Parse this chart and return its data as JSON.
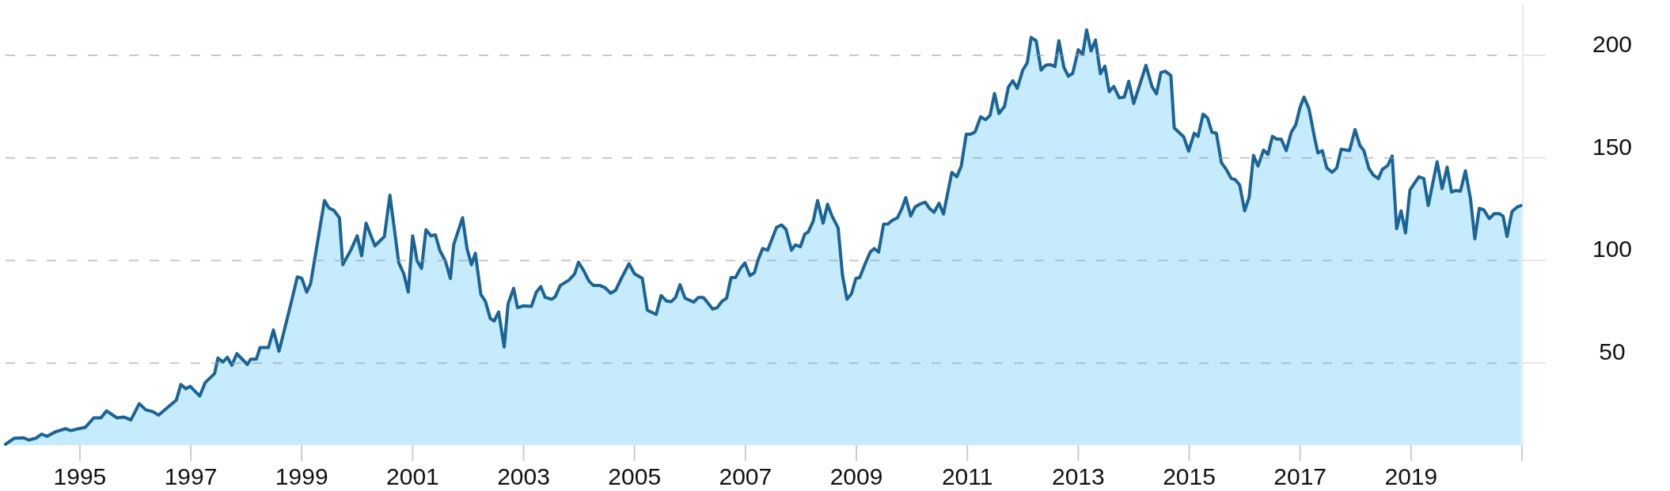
{
  "chart_data": {
    "type": "area",
    "grid": "y",
    "xlim": [
      1993.66,
      2021.0
    ],
    "ylim": [
      10,
      225
    ],
    "xticks": [
      1995,
      1997,
      1999,
      2001,
      2003,
      2005,
      2007,
      2009,
      2011,
      2013,
      2015,
      2017,
      2019,
      {
        "value": 2021,
        "label": null
      }
    ],
    "yticks": [
      50,
      100,
      150,
      200
    ],
    "series": [
      {
        "color": "#1b6497",
        "x": [
          1993.66,
          1993.82,
          1993.98,
          1994.08,
          1994.21,
          1994.31,
          1994.41,
          1994.57,
          1994.74,
          1994.84,
          1994.97,
          1995.1,
          1995.25,
          1995.38,
          1995.48,
          1995.67,
          1995.79,
          1995.92,
          1996.07,
          1996.19,
          1996.32,
          1996.42,
          1996.57,
          1996.74,
          1996.82,
          1996.91,
          1996.99,
          1997.16,
          1997.26,
          1997.43,
          1997.49,
          1997.58,
          1997.66,
          1997.74,
          1997.83,
          1998.02,
          1998.08,
          1998.18,
          1998.25,
          1998.4,
          1998.49,
          1998.59,
          1998.67,
          1998.8,
          1998.92,
          1999.0,
          1999.09,
          1999.16,
          1999.26,
          1999.41,
          1999.49,
          1999.58,
          1999.68,
          1999.74,
          1999.89,
          2000.0,
          2000.08,
          2000.16,
          2000.32,
          2000.49,
          2000.59,
          2000.75,
          2000.84,
          2000.92,
          2001.0,
          2001.08,
          2001.16,
          2001.24,
          2001.33,
          2001.41,
          2001.49,
          2001.59,
          2001.68,
          2001.74,
          2001.9,
          2001.98,
          2002.06,
          2002.13,
          2002.23,
          2002.31,
          2002.4,
          2002.47,
          2002.55,
          2002.65,
          2002.72,
          2002.82,
          2002.89,
          2003.0,
          2003.14,
          2003.23,
          2003.31,
          2003.39,
          2003.51,
          2003.57,
          2003.66,
          2003.82,
          2003.92,
          2003.99,
          2004.08,
          2004.18,
          2004.26,
          2004.38,
          2004.47,
          2004.57,
          2004.66,
          2004.77,
          2004.9,
          2005.0,
          2005.14,
          2005.23,
          2005.39,
          2005.48,
          2005.58,
          2005.66,
          2005.74,
          2005.82,
          2005.91,
          2006.07,
          2006.15,
          2006.24,
          2006.31,
          2006.41,
          2006.49,
          2006.58,
          2006.66,
          2006.74,
          2006.82,
          2006.91,
          2006.99,
          2007.08,
          2007.16,
          2007.23,
          2007.31,
          2007.4,
          2007.56,
          2007.65,
          2007.73,
          2007.83,
          2007.9,
          2007.99,
          2008.07,
          2008.13,
          2008.22,
          2008.3,
          2008.4,
          2008.48,
          2008.56,
          2008.67,
          2008.75,
          2008.83,
          2008.91,
          2008.99,
          2009.06,
          2009.15,
          2009.25,
          2009.32,
          2009.4,
          2009.49,
          2009.57,
          2009.65,
          2009.74,
          2009.82,
          2009.89,
          2009.98,
          2010.06,
          2010.14,
          2010.24,
          2010.32,
          2010.4,
          2010.49,
          2010.57,
          2010.72,
          2010.81,
          2010.89,
          2010.98,
          2011.06,
          2011.14,
          2011.24,
          2011.33,
          2011.41,
          2011.49,
          2011.57,
          2011.67,
          2011.74,
          2011.82,
          2011.9,
          2012.0,
          2012.08,
          2012.15,
          2012.24,
          2012.33,
          2012.41,
          2012.5,
          2012.58,
          2012.65,
          2012.74,
          2012.82,
          2012.9,
          2013.0,
          2013.08,
          2013.15,
          2013.23,
          2013.31,
          2013.4,
          2013.48,
          2013.56,
          2013.64,
          2013.74,
          2013.83,
          2013.91,
          2014.0,
          2014.12,
          2014.22,
          2014.33,
          2014.41,
          2014.49,
          2014.57,
          2014.67,
          2014.73,
          2014.9,
          2014.99,
          2015.09,
          2015.16,
          2015.25,
          2015.33,
          2015.41,
          2015.49,
          2015.58,
          2015.67,
          2015.76,
          2015.83,
          2015.91,
          2016.0,
          2016.08,
          2016.16,
          2016.24,
          2016.34,
          2016.42,
          2016.5,
          2016.58,
          2016.66,
          2016.75,
          2016.84,
          2016.92,
          2017.0,
          2017.07,
          2017.16,
          2017.26,
          2017.32,
          2017.4,
          2017.48,
          2017.58,
          2017.66,
          2017.74,
          2017.89,
          2017.99,
          2018.08,
          2018.15,
          2018.24,
          2018.32,
          2018.41,
          2018.48,
          2018.58,
          2018.66,
          2018.74,
          2018.82,
          2018.9,
          2018.98,
          2019.14,
          2019.23,
          2019.31,
          2019.47,
          2019.56,
          2019.65,
          2019.73,
          2019.81,
          2019.89,
          2019.98,
          2020.07,
          2020.15,
          2020.23,
          2020.31,
          2020.41,
          2020.5,
          2020.59,
          2020.66,
          2020.73,
          2020.82,
          2020.91,
          2020.99
        ],
        "values": [
          10.4,
          13.4,
          13.6,
          12.5,
          13.4,
          15.4,
          14.3,
          16.6,
          18.0,
          17.1,
          18.0,
          18.7,
          23.3,
          23.3,
          26.7,
          23.3,
          23.7,
          22.3,
          30.2,
          27.2,
          26.3,
          24.6,
          28.1,
          32.0,
          39.6,
          37.5,
          38.7,
          33.9,
          40.5,
          44.9,
          52.5,
          50.5,
          52.8,
          48.9,
          54.6,
          49.3,
          51.9,
          51.9,
          57.6,
          57.6,
          66.1,
          55.8,
          64.3,
          78.4,
          92.0,
          91.3,
          84.6,
          88.7,
          104.9,
          129.2,
          125.6,
          124.4,
          120.8,
          97.9,
          105.3,
          112.0,
          102.3,
          118.2,
          107.1,
          111.7,
          131.8,
          98.8,
          93.5,
          84.6,
          112.0,
          99.8,
          96.1,
          115.0,
          112.0,
          112.5,
          104.9,
          99.8,
          91.2,
          107.7,
          120.8,
          105.8,
          97.9,
          103.5,
          83.4,
          80.2,
          71.7,
          70.5,
          74.9,
          57.8,
          78.8,
          86.4,
          77.0,
          77.9,
          77.6,
          84.6,
          87.3,
          82.0,
          81.1,
          82.3,
          87.8,
          90.5,
          93.5,
          99.1,
          95.2,
          89.9,
          87.8,
          87.8,
          86.7,
          84.1,
          85.5,
          91.7,
          98.4,
          93.5,
          91.3,
          75.8,
          73.7,
          82.9,
          80.2,
          79.9,
          82.0,
          88.2,
          81.6,
          79.7,
          82.0,
          82.0,
          79.7,
          76.3,
          77.0,
          80.2,
          81.6,
          91.7,
          91.7,
          96.1,
          98.8,
          92.6,
          94.0,
          100.5,
          105.8,
          105.0,
          116.1,
          117.3,
          115.2,
          105.0,
          107.6,
          106.7,
          112.9,
          113.8,
          119.1,
          129.2,
          118.2,
          127.4,
          121.7,
          115.9,
          92.6,
          81.1,
          83.7,
          91.2,
          91.7,
          97.9,
          104.1,
          105.8,
          104.1,
          117.7,
          117.8,
          119.6,
          120.8,
          125.3,
          130.6,
          121.7,
          126.1,
          127.4,
          128.4,
          125.3,
          123.5,
          127.9,
          122.6,
          142.9,
          140.8,
          145.9,
          161.5,
          161.5,
          162.7,
          170.0,
          168.6,
          170.7,
          181.4,
          171.6,
          175.1,
          184.5,
          187.6,
          183.9,
          192.8,
          196.3,
          208.7,
          207.1,
          192.8,
          195.1,
          195.4,
          194.5,
          207.1,
          194.2,
          189.8,
          191.2,
          202.7,
          200.4,
          212.4,
          202.1,
          207.4,
          191.0,
          194.7,
          182.2,
          184.8,
          179.2,
          179.6,
          187.3,
          176.5,
          186.6,
          195.1,
          184.7,
          181.2,
          191.6,
          192.2,
          190.1,
          164.6,
          160.3,
          153.3,
          162.0,
          160.5,
          171.3,
          169.5,
          162.5,
          162.0,
          147.7,
          144.3,
          139.9,
          139.4,
          136.8,
          124.2,
          130.7,
          151.2,
          146.0,
          153.8,
          151.7,
          160.5,
          159.1,
          159.1,
          153.5,
          162.5,
          166.0,
          174.7,
          179.6,
          173.9,
          159.9,
          152.4,
          153.5,
          145.1,
          143.0,
          145.1,
          154.2,
          153.5,
          163.8,
          155.9,
          153.5,
          144.8,
          141.6,
          139.9,
          144.3,
          146.3,
          150.9,
          115.5,
          124.2,
          113.4,
          134.3,
          140.8,
          139.9,
          126.8,
          148.1,
          135.0,
          145.5,
          133.3,
          134.1,
          133.8,
          143.7,
          130.3,
          110.6,
          125.4,
          124.7,
          120.4,
          122.8,
          122.8,
          121.6,
          111.7,
          123.9,
          126.0,
          126.8
        ]
      }
    ]
  }
}
